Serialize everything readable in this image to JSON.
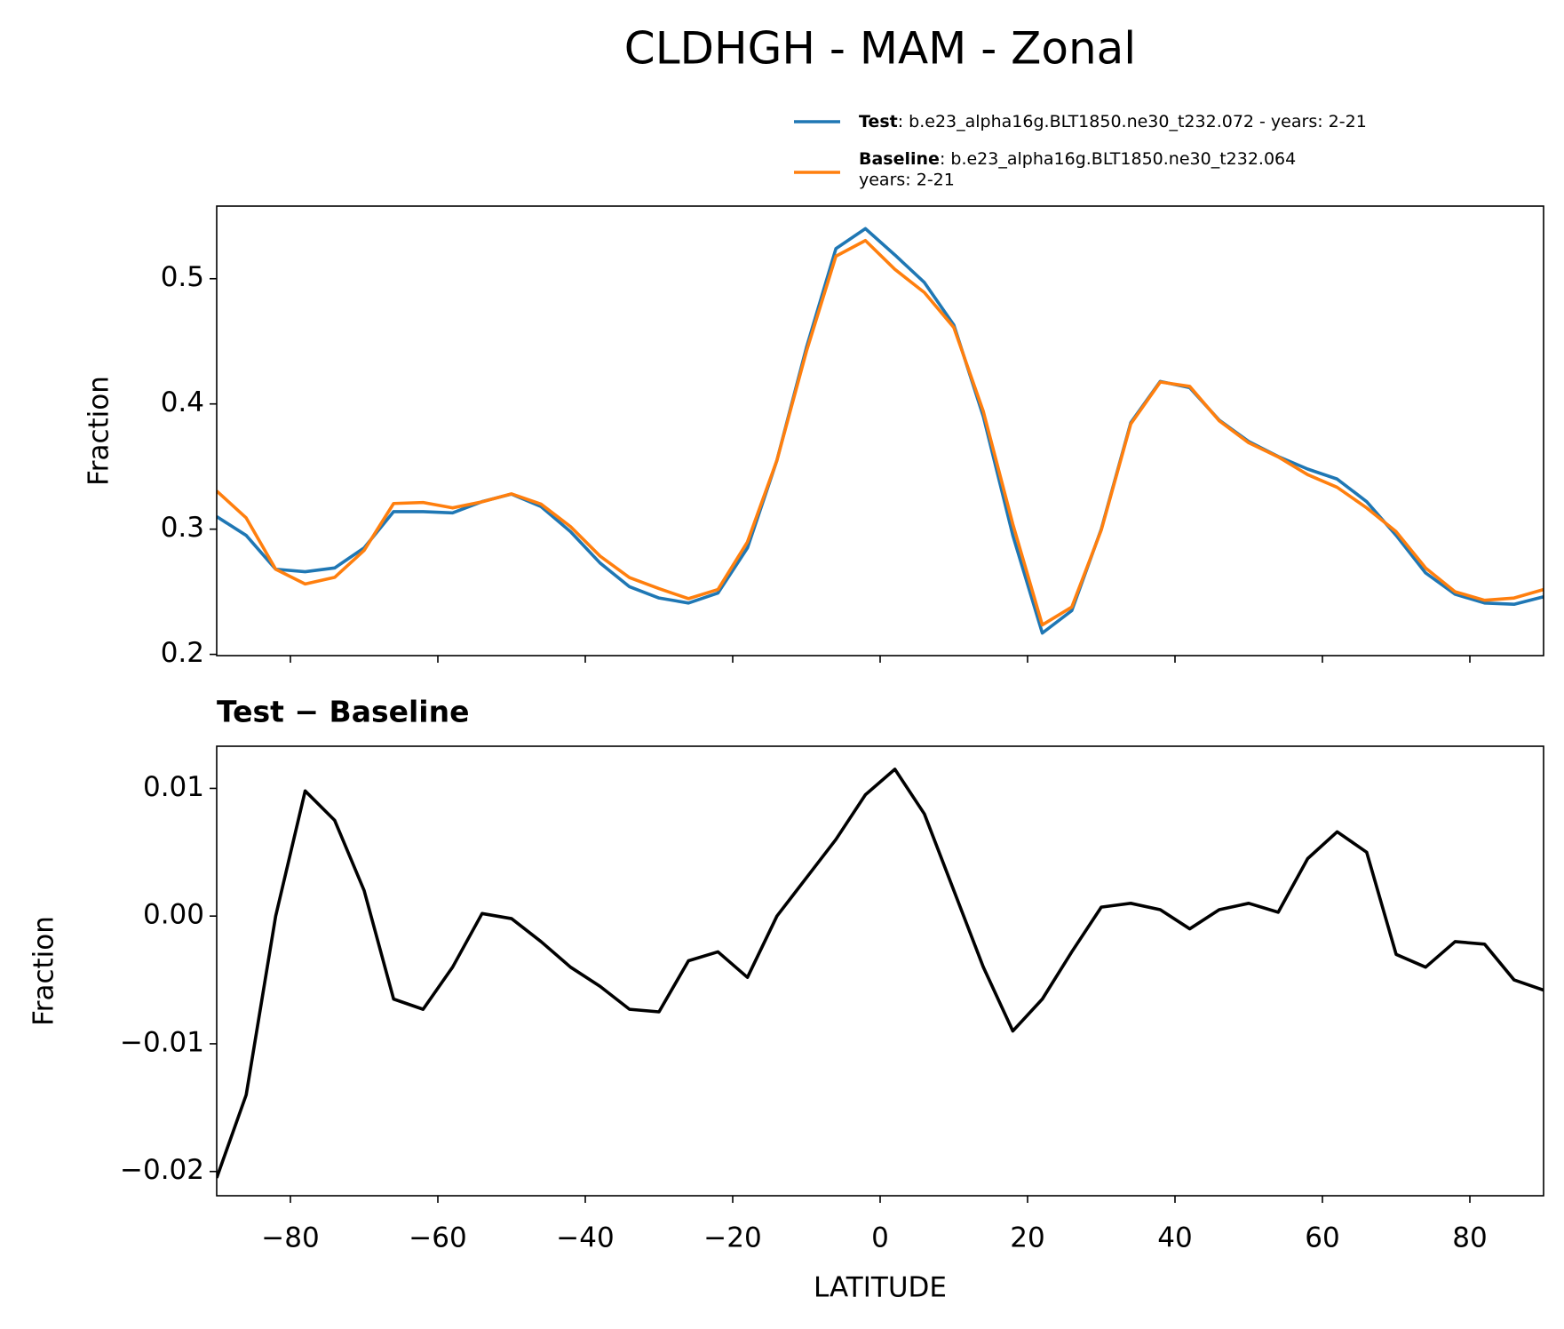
{
  "title": "CLDHGH - MAM - Zonal",
  "chart_data": [
    {
      "type": "line",
      "x": [
        -90,
        -86,
        -82,
        -78,
        -74,
        -70,
        -66,
        -62,
        -58,
        -54,
        -50,
        -46,
        -42,
        -38,
        -34,
        -30,
        -26,
        -22,
        -18,
        -14,
        -10,
        -6,
        -2,
        2,
        6,
        10,
        14,
        18,
        22,
        26,
        30,
        34,
        38,
        42,
        46,
        50,
        54,
        58,
        62,
        66,
        70,
        74,
        78,
        82,
        86,
        90
      ],
      "series": [
        {
          "name": "Test",
          "case": [
            ": b.e23_alpha16g.BLT1850.ne30_t232.072 - years: 2-21"
          ],
          "color": "#1f77b4",
          "values": [
            0.31,
            0.295,
            0.268,
            0.266,
            0.269,
            0.285,
            0.314,
            0.314,
            0.313,
            0.322,
            0.328,
            0.318,
            0.298,
            0.273,
            0.254,
            0.245,
            0.241,
            0.249,
            0.285,
            0.355,
            0.445,
            0.524,
            0.54,
            0.519,
            0.497,
            0.463,
            0.39,
            0.295,
            0.217,
            0.235,
            0.3,
            0.385,
            0.418,
            0.413,
            0.387,
            0.37,
            0.358,
            0.348,
            0.34,
            0.322,
            0.295,
            0.265,
            0.248,
            0.241,
            0.24,
            0.246
          ]
        },
        {
          "name": "Baseline",
          "case": [
            ": b.e23_alpha16g.BLT1850.ne30_t232.064",
            "years: 2-21"
          ],
          "color": "#ff7f0e",
          "values": [
            0.3305,
            0.309,
            0.268,
            0.2562,
            0.2615,
            0.283,
            0.3205,
            0.3213,
            0.317,
            0.3218,
            0.3282,
            0.32,
            0.302,
            0.2785,
            0.2613,
            0.2525,
            0.2445,
            0.2518,
            0.2898,
            0.355,
            0.442,
            0.518,
            0.5305,
            0.5075,
            0.489,
            0.461,
            0.394,
            0.304,
            0.2235,
            0.2378,
            0.2993,
            0.384,
            0.4175,
            0.414,
            0.3865,
            0.369,
            0.3577,
            0.3435,
            0.3334,
            0.317,
            0.298,
            0.269,
            0.25,
            0.2432,
            0.245,
            0.2518
          ]
        }
      ],
      "ylabel": "Fraction",
      "xlim": [
        -90,
        90
      ],
      "xticks": [
        -80,
        -60,
        -40,
        -20,
        0,
        20,
        40,
        60,
        80
      ],
      "xticklabels": false,
      "ylim": [
        0.199,
        0.558
      ],
      "yticks": [
        0.2,
        0.3,
        0.4,
        0.5
      ]
    },
    {
      "type": "line",
      "title": "Test − Baseline",
      "x": [
        -90,
        -86,
        -82,
        -78,
        -74,
        -70,
        -66,
        -62,
        -58,
        -54,
        -50,
        -46,
        -42,
        -38,
        -34,
        -30,
        -26,
        -22,
        -18,
        -14,
        -10,
        -6,
        -2,
        2,
        6,
        10,
        14,
        18,
        22,
        26,
        30,
        34,
        38,
        42,
        46,
        50,
        54,
        58,
        62,
        66,
        70,
        74,
        78,
        82,
        86,
        90
      ],
      "values": [
        -0.0205,
        -0.014,
        0.0,
        0.0098,
        0.0075,
        0.002,
        -0.0065,
        -0.0073,
        -0.004,
        0.0002,
        -0.0002,
        -0.002,
        -0.004,
        -0.0055,
        -0.0073,
        -0.0075,
        -0.0035,
        -0.0028,
        -0.0048,
        0.0,
        0.003,
        0.006,
        0.0095,
        0.0115,
        0.008,
        0.002,
        -0.004,
        -0.009,
        -0.0065,
        -0.0028,
        0.0007,
        0.001,
        0.0005,
        -0.001,
        0.0005,
        0.001,
        0.0003,
        0.0045,
        0.0066,
        0.005,
        -0.003,
        -0.004,
        -0.002,
        -0.0022,
        -0.005,
        -0.0058
      ],
      "color": "#000000",
      "ylabel": "Fraction",
      "xlabel": "LATITUDE",
      "xlim": [
        -90,
        90
      ],
      "xticks": [
        {
          "value": -80,
          "label": "−80"
        },
        {
          "value": -60,
          "label": "−60"
        },
        {
          "value": -40,
          "label": "−40"
        },
        {
          "value": -20,
          "label": "−20"
        },
        0,
        20,
        40,
        60,
        80
      ],
      "xticklabels": true,
      "ylim": [
        -0.0219,
        0.0133
      ],
      "yticks": [
        {
          "value": -0.02,
          "label": "−0.02"
        },
        {
          "value": -0.01,
          "label": "−0.01"
        },
        {
          "value": 0,
          "label": "0.00"
        },
        {
          "value": 0.01,
          "label": "0.01"
        }
      ]
    }
  ]
}
